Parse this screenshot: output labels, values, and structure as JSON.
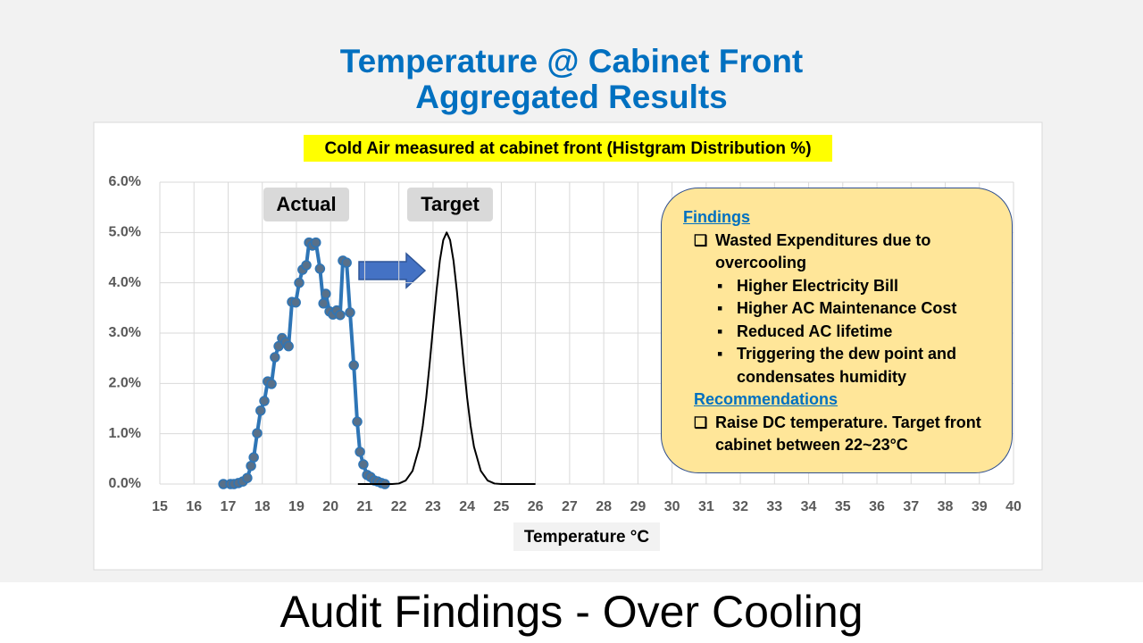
{
  "slide": {
    "title_lines": [
      "Temperature @ Cabinet Front",
      "Aggregated Results"
    ],
    "footer": "Audit Findings - Over Cooling"
  },
  "chart_data": {
    "type": "line",
    "title": "Cold Air measured at cabinet front (Histgram Distribution %)",
    "x_label": "Temperature °C",
    "xlim": [
      15,
      40
    ],
    "xticks": [
      15,
      16,
      17,
      18,
      19,
      20,
      21,
      22,
      23,
      24,
      25,
      26,
      27,
      28,
      29,
      30,
      31,
      32,
      33,
      34,
      35,
      36,
      37,
      38,
      39,
      40
    ],
    "ylim": [
      0,
      6
    ],
    "yticks": [
      {
        "value": 0,
        "label": "0.0%"
      },
      {
        "value": 1,
        "label": "1.0%"
      },
      {
        "value": 2,
        "label": "2.0%"
      },
      {
        "value": 3,
        "label": "3.0%"
      },
      {
        "value": 4,
        "label": "4.0%"
      },
      {
        "value": 5,
        "label": "5.0%"
      },
      {
        "value": 6,
        "label": "6.0%"
      }
    ],
    "grid": true,
    "series": [
      {
        "name": "Actual",
        "color": "#2e75b6",
        "marker_color": "#587089",
        "markers": true,
        "x": [
          16.86,
          17.07,
          17.17,
          17.3,
          17.43,
          17.56,
          17.67,
          17.75,
          17.85,
          17.95,
          18.06,
          18.16,
          18.27,
          18.37,
          18.48,
          18.58,
          18.69,
          18.77,
          18.87,
          18.98,
          19.08,
          19.18,
          19.29,
          19.37,
          19.47,
          19.57,
          19.69,
          19.79,
          19.86,
          19.97,
          20.07,
          20.18,
          20.28,
          20.36,
          20.47,
          20.57,
          20.68,
          20.78,
          20.86,
          20.96,
          21.07,
          21.17,
          21.28,
          21.38,
          21.49,
          21.59
        ],
        "values": [
          0,
          0,
          0,
          0.02,
          0.05,
          0.12,
          0.36,
          0.53,
          1.01,
          1.46,
          1.65,
          2.04,
          1.99,
          2.52,
          2.74,
          2.9,
          2.82,
          2.74,
          3.62,
          3.61,
          4.0,
          4.26,
          4.35,
          4.8,
          4.74,
          4.8,
          4.28,
          3.59,
          3.78,
          3.43,
          3.37,
          3.45,
          3.36,
          4.44,
          4.4,
          3.41,
          2.36,
          1.24,
          0.64,
          0.39,
          0.18,
          0.14,
          0.07,
          0.05,
          0.02,
          0
        ]
      },
      {
        "name": "Target",
        "color": "#000000",
        "markers": false,
        "x": [
          20.8,
          21.8,
          22.0,
          22.2,
          22.4,
          22.6,
          22.7,
          22.8,
          22.9,
          23.0,
          23.1,
          23.2,
          23.3,
          23.4,
          23.5,
          23.6,
          23.7,
          23.8,
          23.9,
          24.0,
          24.1,
          24.2,
          24.4,
          24.6,
          24.8,
          25.0,
          26.0
        ],
        "values": [
          0,
          0,
          0.01,
          0.07,
          0.26,
          0.74,
          1.16,
          1.71,
          2.38,
          3.11,
          3.83,
          4.44,
          4.85,
          5.0,
          4.85,
          4.44,
          3.83,
          3.11,
          2.38,
          1.71,
          1.16,
          0.74,
          0.26,
          0.07,
          0.01,
          0,
          0
        ]
      }
    ]
  },
  "findings_box": {
    "heading": "Findings",
    "items": [
      {
        "text": "Wasted Expenditures due to overcooling",
        "subitems": [
          "Higher Electricity Bill",
          "Higher AC Maintenance Cost",
          "Reduced AC lifetime",
          "Triggering the dew point and condensates humidity"
        ]
      }
    ],
    "recommendations_heading": "Recommendations",
    "recommendations": [
      "Raise DC temperature. Target front cabinet between 22~23°C"
    ]
  }
}
